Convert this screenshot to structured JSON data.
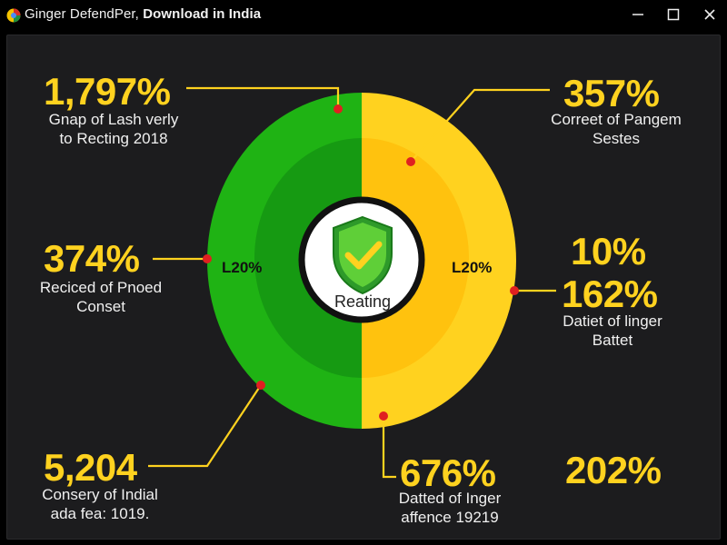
{
  "window": {
    "title_plain": "Ginger DefendPer, ",
    "title_bold": "Download in India",
    "icon": "app-logo-icon",
    "controls": [
      "minimize-icon",
      "maximize-icon",
      "close-icon"
    ]
  },
  "colors": {
    "green": "#1fb314",
    "green_inner": "#169a12",
    "yellow": "#ffd21f",
    "yellow_inner": "#ffc20e",
    "background": "#1c1c1e",
    "accent_dot": "#e02020"
  },
  "ring": {
    "left_label": "L20%",
    "right_label": "L20%",
    "center_icon": "shield-check-icon",
    "center_label": "Reating"
  },
  "stats": [
    {
      "value": "1,797%",
      "desc_line1": "Gnap of Lash verly",
      "desc_line2": "to Recting 2018"
    },
    {
      "value": "357%",
      "desc_line1": "Correet of Pangem",
      "desc_line2": "Sestes"
    },
    {
      "value": "374%",
      "desc_line1": "Reciced of Pnoed",
      "desc_line2": "Conset"
    },
    {
      "value_line1": "10%",
      "value_line2": "162%",
      "desc_line1": "Datiet of linger",
      "desc_line2": "Battet"
    },
    {
      "value": "5,204",
      "desc_line1": "Consery of Indial",
      "desc_line2": "ada fea: 1019."
    },
    {
      "value": "676%",
      "desc_line1": "Datted of Inger",
      "desc_line2": "affence 19219"
    },
    {
      "value": "202%"
    }
  ]
}
